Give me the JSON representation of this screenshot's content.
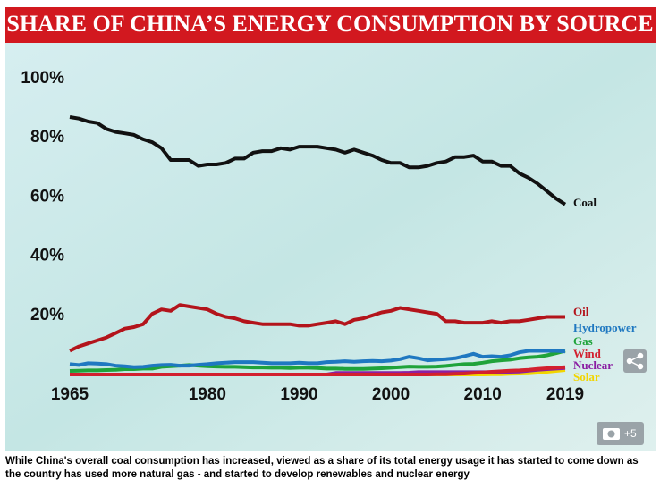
{
  "chart_data": {
    "type": "line",
    "title": "SHARE OF CHINA’S ENERGY CONSUMPTION BY SOURCE",
    "x": [
      1965,
      1966,
      1967,
      1968,
      1969,
      1970,
      1971,
      1972,
      1973,
      1974,
      1975,
      1976,
      1977,
      1978,
      1979,
      1980,
      1981,
      1982,
      1983,
      1984,
      1985,
      1986,
      1987,
      1988,
      1989,
      1990,
      1991,
      1992,
      1993,
      1994,
      1995,
      1996,
      1997,
      1998,
      1999,
      2000,
      2001,
      2002,
      2003,
      2004,
      2005,
      2006,
      2007,
      2008,
      2009,
      2010,
      2011,
      2012,
      2013,
      2014,
      2015,
      2016,
      2017,
      2018,
      2019
    ],
    "xlim": [
      1965,
      2019
    ],
    "xticks": [
      1965,
      1980,
      1990,
      2000,
      2010,
      2019
    ],
    "ylim": [
      0,
      100
    ],
    "yticks": [
      {
        "value": 20,
        "label": "20%"
      },
      {
        "value": 40,
        "label": "40%"
      },
      {
        "value": 60,
        "label": "60%"
      },
      {
        "value": 80,
        "label": "80%"
      },
      {
        "value": 100,
        "label": "100%"
      }
    ],
    "grid": false,
    "series": [
      {
        "name": "Coal",
        "color": "#111111",
        "values": [
          87,
          86.5,
          85.5,
          85,
          83,
          82,
          81.5,
          81,
          79.5,
          78.5,
          76.5,
          72.5,
          72.5,
          72.5,
          70.5,
          71,
          71,
          71.5,
          73,
          73,
          75,
          75.5,
          75.5,
          76.5,
          76,
          77,
          77,
          77,
          76.5,
          76,
          75,
          76,
          75,
          74,
          72.5,
          71.5,
          71.5,
          70,
          70,
          70.5,
          71.5,
          72,
          73.5,
          73.5,
          74,
          72,
          72,
          70.5,
          70.5,
          68,
          66.5,
          64.5,
          62,
          59.5,
          57.5
        ]
      },
      {
        "name": "Oil",
        "color": "#b3141b",
        "values": [
          8,
          9.5,
          10.5,
          11.5,
          12.5,
          14,
          15.5,
          16,
          17,
          20.5,
          22,
          21.5,
          23.5,
          23,
          22.5,
          22,
          20.5,
          19.5,
          19,
          18,
          17.5,
          17,
          17,
          17,
          17,
          16.5,
          16.5,
          17,
          17.5,
          18,
          17,
          18.5,
          19,
          20,
          21,
          21.5,
          22.5,
          22,
          21.5,
          21,
          20.5,
          18,
          18,
          17.5,
          17.5,
          17.5,
          18,
          17.5,
          18,
          18,
          18.5,
          19,
          19.5,
          19.5,
          19.5
        ]
      },
      {
        "name": "Hydropower",
        "color": "#1f78c1",
        "values": [
          3.5,
          3.2,
          3.8,
          3.7,
          3.5,
          3,
          2.8,
          2.5,
          2.6,
          3,
          3.2,
          3.3,
          3,
          3,
          3.3,
          3.5,
          3.8,
          4,
          4.2,
          4.2,
          4.2,
          4,
          3.8,
          3.8,
          3.8,
          4,
          3.8,
          3.8,
          4.2,
          4.3,
          4.5,
          4.3,
          4.5,
          4.6,
          4.5,
          4.7,
          5.2,
          6,
          5.5,
          4.8,
          5,
          5.2,
          5.5,
          6.2,
          7,
          6,
          6.2,
          6,
          6.5,
          7.5,
          8,
          8,
          8,
          8,
          7.8
        ]
      },
      {
        "name": "Gas",
        "color": "#1fa33a",
        "values": [
          1.2,
          1.3,
          1.4,
          1.4,
          1.5,
          1.6,
          1.8,
          1.8,
          2,
          2,
          2.6,
          2.8,
          3,
          3.2,
          3,
          2.8,
          2.7,
          2.6,
          2.6,
          2.5,
          2.4,
          2.4,
          2.3,
          2.3,
          2.2,
          2.3,
          2.3,
          2.2,
          2,
          2,
          1.9,
          1.9,
          1.9,
          2,
          2.1,
          2.3,
          2.5,
          2.7,
          2.6,
          2.6,
          2.7,
          2.9,
          3.2,
          3.5,
          3.6,
          4,
          4.5,
          4.8,
          5,
          5.5,
          5.8,
          6,
          6.5,
          7.2,
          8
        ]
      },
      {
        "name": "Wind",
        "color": "#d2202f",
        "values": [
          0,
          0,
          0,
          0,
          0,
          0,
          0,
          0,
          0,
          0,
          0,
          0,
          0,
          0,
          0,
          0,
          0,
          0,
          0,
          0,
          0,
          0,
          0,
          0,
          0,
          0,
          0,
          0,
          0,
          0,
          0,
          0,
          0,
          0,
          0,
          0,
          0,
          0,
          0,
          0,
          0.05,
          0.1,
          0.2,
          0.3,
          0.5,
          0.7,
          0.9,
          1.1,
          1.3,
          1.4,
          1.6,
          1.9,
          2.1,
          2.3,
          2.5
        ]
      },
      {
        "name": "Nuclear",
        "color": "#8b1fa3",
        "values": [
          0,
          0,
          0,
          0,
          0,
          0,
          0,
          0,
          0,
          0,
          0,
          0,
          0,
          0,
          0,
          0,
          0,
          0,
          0,
          0,
          0,
          0,
          0,
          0,
          0,
          0,
          0,
          0,
          0,
          0.5,
          0.5,
          0.5,
          0.5,
          0.5,
          0.5,
          0.5,
          0.5,
          0.6,
          0.8,
          0.8,
          0.8,
          0.8,
          0.8,
          0.8,
          0.8,
          0.8,
          0.8,
          0.8,
          0.9,
          1,
          1.3,
          1.6,
          1.8,
          2,
          2.2
        ]
      },
      {
        "name": "Solar",
        "color": "#f2d500",
        "values": [
          0,
          0,
          0,
          0,
          0,
          0,
          0,
          0,
          0,
          0,
          0,
          0,
          0,
          0,
          0,
          0,
          0,
          0,
          0,
          0,
          0,
          0,
          0,
          0,
          0,
          0,
          0,
          0,
          0,
          0,
          0,
          0,
          0,
          0,
          0,
          0,
          0,
          0,
          0,
          0,
          0,
          0,
          0,
          0,
          0,
          0,
          0.05,
          0.1,
          0.2,
          0.3,
          0.4,
          0.6,
          0.9,
          1.2,
          1.5
        ]
      }
    ]
  },
  "caption": "While China's overall coal consumption has increased, viewed as a share of its total energy usage it has started to come down as the country has used more natural gas - and started to develop renewables and nuclear energy",
  "photo_count": "+5"
}
